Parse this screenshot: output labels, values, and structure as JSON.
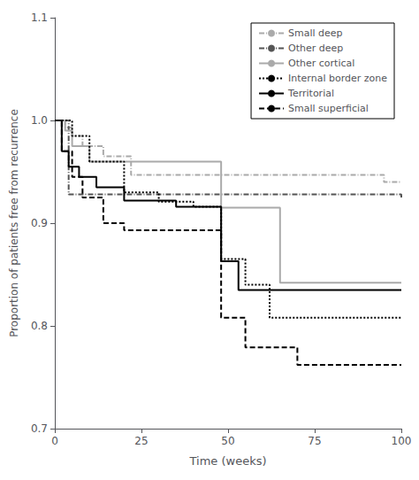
{
  "chart_data": {
    "type": "line",
    "title": "",
    "xlabel": "Time (weeks)",
    "ylabel": "Proportion of patients free from recurrence",
    "xlim": [
      0,
      100
    ],
    "ylim": [
      0.7,
      1.1
    ],
    "xticks": [
      0,
      25,
      50,
      75,
      100
    ],
    "yticks": [
      0.7,
      0.8,
      0.9,
      {
        "value": 1.0,
        "label": "1.0"
      },
      1.1
    ],
    "grid": false,
    "legend": "upper right",
    "series": [
      {
        "name": "Small deep",
        "color": "#aaaaaa",
        "line_style": "dashdot",
        "x": [
          0,
          3,
          5,
          8,
          14,
          22,
          95,
          100
        ],
        "values": [
          1.0,
          0.993,
          0.985,
          0.975,
          0.965,
          0.947,
          0.94,
          0.94
        ]
      },
      {
        "name": "Other deep",
        "color": "#555555",
        "line_style": "dashdot",
        "x": [
          0,
          4,
          95,
          100
        ],
        "values": [
          1.0,
          0.928,
          0.928,
          0.925
        ]
      },
      {
        "name": "Other cortical",
        "color": "#aaaaaa",
        "line_style": "solid",
        "x": [
          0,
          3,
          5,
          10,
          48,
          65,
          100
        ],
        "values": [
          1.0,
          0.99,
          0.975,
          0.96,
          0.915,
          0.842,
          0.842
        ]
      },
      {
        "name": "Internal border zone",
        "color": "#000000",
        "line_style": "dotted",
        "x": [
          0,
          2,
          5,
          10,
          20,
          30,
          40,
          48,
          55,
          62,
          100
        ],
        "values": [
          1.0,
          1.0,
          0.985,
          0.96,
          0.93,
          0.921,
          0.916,
          0.865,
          0.84,
          0.808,
          0.808
        ]
      },
      {
        "name": "Territorial",
        "color": "#000000",
        "line_style": "solid",
        "x": [
          0,
          2,
          4,
          7,
          12,
          20,
          35,
          48,
          53,
          100
        ],
        "values": [
          1.0,
          0.97,
          0.955,
          0.945,
          0.935,
          0.922,
          0.916,
          0.863,
          0.835,
          0.835
        ]
      },
      {
        "name": "Small superficial",
        "color": "#000000",
        "line_style": "dashed",
        "x": [
          0,
          2,
          5,
          8,
          14,
          20,
          48,
          55,
          70,
          100
        ],
        "values": [
          1.0,
          0.97,
          0.945,
          0.925,
          0.9,
          0.893,
          0.808,
          0.779,
          0.762,
          0.762
        ]
      }
    ]
  }
}
